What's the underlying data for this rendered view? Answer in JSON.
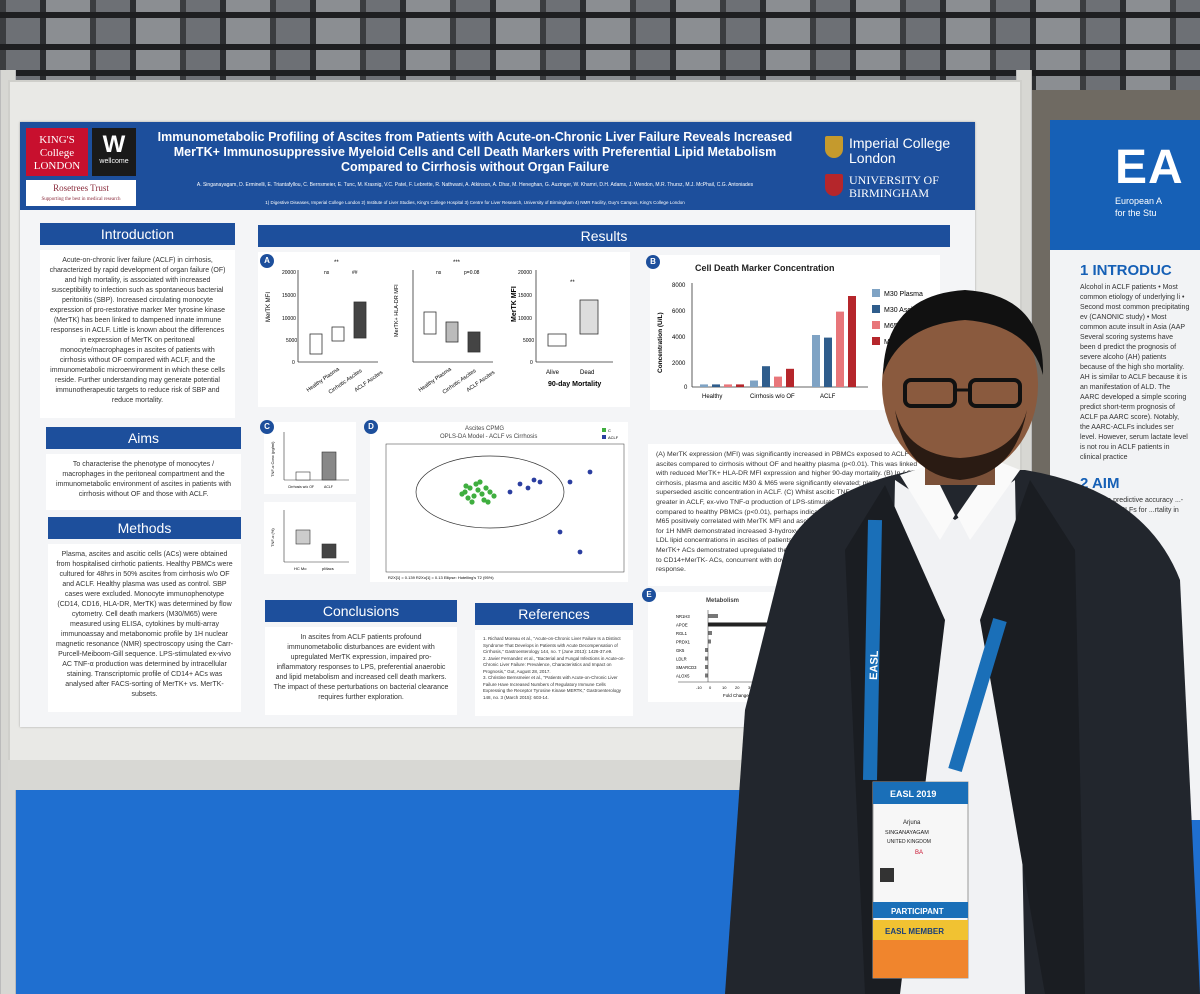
{
  "poster": {
    "title_lines": [
      "Immunometabolic Profiling of Ascites from Patients with Acute-on-Chronic Liver Failure Reveals Increased",
      "MerTK+ Immunosuppressive Myeloid Cells and Cell Death Markers with Preferential Lipid Metabolism",
      "Compared to Cirrhosis without Organ Failure"
    ],
    "authors": "A. Singanayagam, D. Erminelli, E. Triantafyllou, C. Bernsmeier, E. Tunc, M. Krasnig, V.C. Patel, F. Lebrette, R. Nathwani, A. Atkinson, A. Dhar, M. Heneghan, G. Auzinger, W. Khamri, D.H. Adams, J. Wendon, M.R. Thursz, M.J. McPhail, C.G. Antoniades",
    "affiliations": "1) Digestive Diseases, Imperial College London 2) Institute of Liver Studies, King's College Hospital 3) Centre for Liver Research, University of Birmingham 4) NMR Facility, Guy's Campus, King's College London",
    "logos": {
      "kings": "KING'S College LONDON",
      "wellcome_letter": "W",
      "wellcome": "wellcome",
      "rosetrees": "Rosetrees Trust",
      "rosetrees_sub": "Supporting the best in medical research",
      "imperial": [
        "Imperial College",
        "London"
      ],
      "birmingham": [
        "UNIVERSITY OF",
        "BIRMINGHAM"
      ]
    },
    "sections": {
      "introduction": {
        "heading": "Introduction",
        "text": "Acute-on-chronic liver failure (ACLF) in cirrhosis, characterized by rapid development of organ failure (OF) and high mortality, is associated with increased susceptibility to infection such as spontaneous bacterial peritonitis (SBP). Increased circulating monocyte expression of pro-restorative marker Mer tyrosine kinase (MerTK) has been linked to dampened innate immune responses in ACLF. Little is known about the differences in expression of MerTK on peritoneal monocyte/macrophages in ascites of patients with cirrhosis without OF compared with ACLF, and the immunometabolic microenvironment in which these cells reside. Further understanding may generate potential immunotherapeutic targets to reduce risk of SBP and reduce mortality."
      },
      "aims": {
        "heading": "Aims",
        "text": "To characterise the phenotype of monocytes / macrophages in the peritoneal compartment and the immunometabolic environment of ascites in patients with cirrhosis without OF and those with ACLF."
      },
      "methods": {
        "heading": "Methods",
        "text": "Plasma, ascites and ascitic cells (ACs) were obtained from hospitalised cirrhotic patients. Healthy PBMCs were cultured for 48hrs in 50% ascites from cirrhosis w/o OF and ACLF. Healthy plasma was used as control. SBP cases were excluded. Monocyte immunophenotype (CD14, CD16, HLA-DR, MerTK) was determined by flow cytometry. Cell death markers (M30/M65) were measured using ELISA, cytokines by multi-array immunoassay and metabonomic profile by 1H nuclear magnetic resonance (NMR) spectroscopy using the Carr-Purcell-Meiboom-Gill sequence. LPS-stimulated ex-vivo AC TNF-α production was determined by intracellular staining. Transcriptomic profile of CD14+ ACs was analysed after FACS-sorting of MerTK+ vs. MerTK- subsets."
      },
      "results": {
        "heading": "Results"
      },
      "conclusions": {
        "heading": "Conclusions",
        "text": "In ascites from ACLF patients profound immunometabolic disturbances are evident with upregulated MerTK expression, impaired pro-inflammatory responses to LPS, preferential anaerobic and lipid metabolism and increased cell death markers. The impact of these perturbations on bacterial clearance requires further exploration."
      },
      "references": {
        "heading": "References",
        "items": [
          "1. Richard Moreau et al., \"Acute-on-Chronic Liver Failure Is a Distinct Syndrome That Develops in Patients with Acute Decompensation of Cirrhosis,\" Gastroenterology 144, no. 7 (June 2013): 1426-37.e9.",
          "2. Javier Fernandez et al., \"Bacterial and Fungal Infections in Acute-on-Chronic Liver Failure: Prevalence, Characteristics and Impact on Prognosis,\" Gut, August 28, 2017.",
          "3. Christine Bernsmeier et al., \"Patients with Acute-on-Chronic Liver Failure Have Increased Numbers of Regulatory Immune Cells Expressing the Receptor Tyrosine Kinase MERTK,\" Gastroenterology 148, no. 3 (March 2015): 603-14."
        ]
      },
      "results_text": "(A) MerTK expression (MFI) was significantly increased in PBMCs exposed to ACLF ascites compared to cirrhosis without OF and healthy plasma (p<0.01). This was linked with reduced MerTK+ HLA-DR MFI expression and higher 90-day mortality. (B) In ACLF vs. cirrhosis, plasma and ascitic M30 & M65 were significantly elevated; plasma M30 superseded ascitic concentration in ACLF. (C) Whilst ascitic TNF-α concentrations were greater in ACLF, ex-vivo TNF-α production of LPS-stimulated CD14+ ACs was attenuated compared to healthy PBMCs (p<0.01), perhaps indicative of endotoxin tolerance. Ascitic M65 positively correlated with MerTK MFI and ascitic TNF-α (p<0.05). (D) OPLS-DA model for 1H NMR demonstrated increased 3-hydroxybutyrate (p=0.008), lactate (p<0.05) and LDL lipid concentrations in ascites of patients with ACLF. (E) Transcriptomic profiling of MerTK+ ACs demonstrated upregulated the lipid-metabolic ApoE gene (p<0.05) compared to CD14+MerTK- ACs, concurrent with downregulated genes involved in pathogen response."
    },
    "panels": {
      "A": {
        "label": "A",
        "plot1_ylabel": "MerTK MFI",
        "plot1_ticks": [
          "20000",
          "15000",
          "10000",
          "5000",
          "0"
        ],
        "plot1_cats": [
          "Healthy Plasma",
          "Cirrhotic Ascites",
          "ACLF Ascites"
        ],
        "plot1_sig": [
          "**",
          "ns",
          "##"
        ],
        "plot2_ylabel": "MerTK+ HLA-DR MFI",
        "plot2_sig": [
          "***",
          "ns",
          "p=0.08"
        ],
        "plot2_cats": [
          "Healthy Plasma",
          "Cirrhotic Ascites",
          "ACLF Ascites"
        ],
        "plot3_ylabel": "MerTK MFI",
        "plot3_ticks": [
          "20000",
          "15000",
          "10000",
          "5000",
          "0"
        ],
        "plot3_cats": [
          "Alive",
          "Dead"
        ],
        "plot3_sig": "**",
        "plot3_title": "90-day Mortality"
      },
      "B": {
        "label": "B",
        "title": "Cell Death Marker Concentration",
        "ylabel": "Concentration (U/L)",
        "ticks": [
          "8000",
          "6000",
          "4000",
          "2000",
          "0"
        ],
        "cats": [
          "Healthy",
          "Cirrhosis w/o OF",
          "ACLF"
        ],
        "legend": [
          "M30 Plasma",
          "M30 Ascites",
          "M65 Plasma",
          "M65 Ascites"
        ],
        "colors": [
          "#7fa3c4",
          "#2f5d8c",
          "#e8767a",
          "#b5262b"
        ]
      },
      "C": {
        "label": "C",
        "plot1_ylabel": "TNF-α Conc (pg/ml)",
        "plot1_cats": [
          "Cirrhosis w/o OF",
          "ACLF"
        ],
        "plot2_ylabel": "TNF-α (%)",
        "plot2_cats": [
          "HC Mo",
          "pMacs"
        ]
      },
      "D": {
        "label": "D",
        "title_line1": "Ascites CPMG",
        "title_line2": "OPLS-DA Model - ACLF vs Cirrhosis",
        "legend": [
          "C",
          "ACLF"
        ],
        "footer": "R2X[1] = 0.139    R2Xo[1] = 0.13    Ellipse: Hotelling's T2 (95%)"
      },
      "E": {
        "label": "E",
        "title": "Metabolism",
        "genes": [
          "NR1H3",
          "APOE",
          "RGL1",
          "PRDX1",
          "GK5",
          "LDLR",
          "SMARCD3",
          "ALOX5"
        ],
        "xlabel": "Fold Change",
        "ticks": [
          "-10",
          "0",
          "10",
          "20",
          "30",
          "40",
          "50"
        ]
      }
    }
  },
  "side_poster": {
    "logo": "EA",
    "sub_lines": [
      "European A",
      "for the Stu"
    ],
    "heading_intro": "INTRODUC",
    "intro_text": "Alcohol in ACLF patients • Most common etiology of underlying li • Second most common precipitating ev (CANONIC study) • Most common acute insult in Asia (AAP Several scoring systems have been d predict the prognosis of severe alcoho (AH) patients because of the high sho mortality. AH is similar to ACLF because it is an manifestation of ALD. The AARC developed a simple scoring predict short-term prognosis of ACLF pa AARC score). Notably, the AARC-ACLFs includes ser level. However, serum lactate level is not rou in ACLF patients in clinical practice",
    "heading_aim": "AIM",
    "aim_text": "...ated the predictive accuracy ...-free AARC-ACLFs for ...rtality in ALD p",
    "num1": "1",
    "num2": "2"
  },
  "badge": {
    "event": "EASL 2019",
    "name": "Arjuna",
    "surname": "SINGANAYAGAM",
    "country": "UNITED KINGDOM",
    "code": "BA",
    "role": "PARTICIPANT",
    "member": "EASL MEMBER",
    "lanyard": "EASL"
  }
}
